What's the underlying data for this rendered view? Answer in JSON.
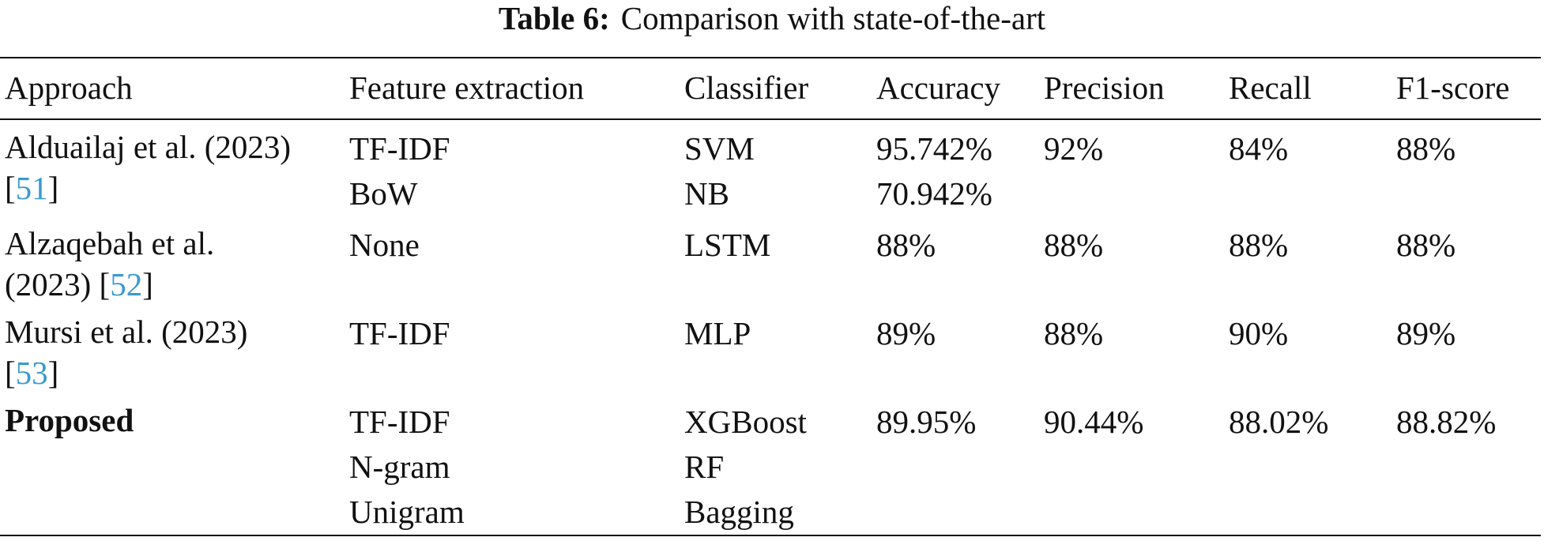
{
  "caption": {
    "label": "Table 6:",
    "title": "Comparison with state-of-the-art"
  },
  "table": {
    "header": [
      "Approach",
      "Feature extraction",
      "Classifier",
      "Accuracy",
      "Precision",
      "Recall",
      "F1-score"
    ],
    "rows": [
      {
        "approach": {
          "text": "Alduailaj et al. (2023) [",
          "ref": "51",
          "close": "]"
        },
        "cells": [
          [
            "TF-IDF",
            "BoW"
          ],
          [
            "SVM",
            "NB"
          ],
          [
            "95.742%",
            "70.942%"
          ],
          [
            "92%"
          ],
          [
            "84%"
          ],
          [
            "88%"
          ]
        ]
      },
      {
        "approach": {
          "text": "Alzaqebah et al. (2023) [",
          "ref": "52",
          "close": "]"
        },
        "cells": [
          [
            "None"
          ],
          [
            "LSTM"
          ],
          [
            "88%"
          ],
          [
            "88%"
          ],
          [
            "88%"
          ],
          [
            "88%"
          ]
        ]
      },
      {
        "approach": {
          "text": "Mursi et al. (2023) [",
          "ref": "53",
          "close": "]"
        },
        "cells": [
          [
            "TF-IDF"
          ],
          [
            "MLP"
          ],
          [
            "89%"
          ],
          [
            "88%"
          ],
          [
            "90%"
          ],
          [
            "89%"
          ]
        ]
      },
      {
        "approach": {
          "text": "Proposed"
        },
        "cells": [
          [
            "TF-IDF",
            "N-gram",
            "Unigram"
          ],
          [
            "XGBoost",
            "RF",
            "Bagging"
          ],
          [
            "89.95%"
          ],
          [
            "90.44%"
          ],
          [
            "88.02%"
          ],
          [
            "88.82%"
          ]
        ]
      }
    ]
  }
}
